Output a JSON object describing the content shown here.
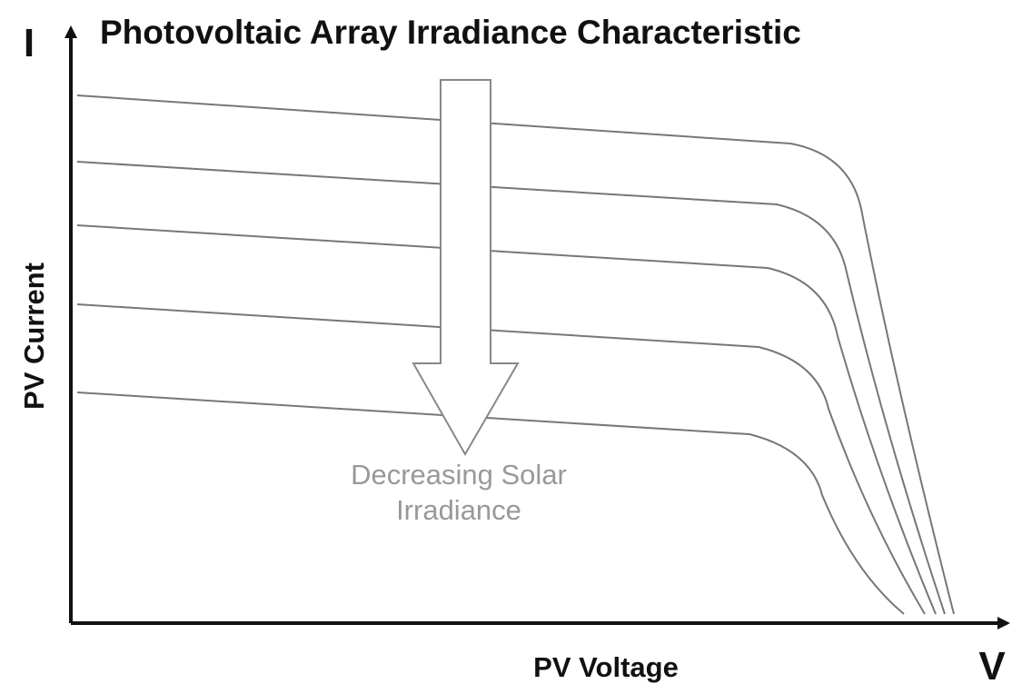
{
  "title": "Photovoltaic Array Irradiance Characteristic",
  "y_axis": {
    "symbol": "I",
    "label": "PV Current"
  },
  "x_axis": {
    "symbol": "V",
    "label": "PV Voltage"
  },
  "annotation": {
    "lines": [
      "Decreasing Solar",
      "Irradiance"
    ]
  }
}
